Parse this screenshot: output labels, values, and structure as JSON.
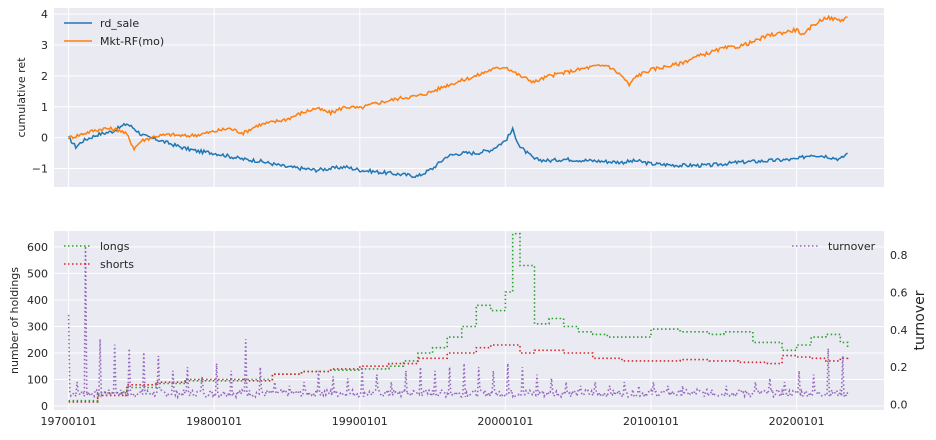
{
  "chart_data": [
    {
      "type": "line",
      "ylabel": "cumulative ret",
      "ylim": [
        -1.6,
        4.2
      ],
      "yticks": [
        -1,
        0,
        1,
        2,
        3,
        4
      ],
      "xlim": [
        1969.0,
        2026.0
      ],
      "legend_position": "top-left",
      "grid": true,
      "series": [
        {
          "name": "rd_sale",
          "color": "#1f77b4",
          "x": [
            1970.0,
            1970.5,
            1971.0,
            1972.0,
            1973.0,
            1974.0,
            1974.5,
            1975.0,
            1975.5,
            1976.0,
            1977.0,
            1978.0,
            1979.0,
            1980.0,
            1981.0,
            1982.0,
            1983.0,
            1984.0,
            1985.0,
            1986.0,
            1987.0,
            1988.0,
            1989.0,
            1990.0,
            1991.0,
            1992.0,
            1993.0,
            1994.0,
            1995.0,
            1996.0,
            1997.0,
            1998.0,
            1999.0,
            2000.0,
            2000.5,
            2001.0,
            2002.0,
            2003.0,
            2004.0,
            2006.0,
            2008.0,
            2009.0,
            2010.0,
            2012.0,
            2014.0,
            2016.0,
            2018.0,
            2020.0,
            2021.0,
            2022.0,
            2023.0,
            2023.5
          ],
          "y": [
            0.0,
            -0.3,
            -0.1,
            0.1,
            0.2,
            0.45,
            0.3,
            0.1,
            0.0,
            -0.05,
            -0.2,
            -0.35,
            -0.45,
            -0.5,
            -0.6,
            -0.7,
            -0.75,
            -0.85,
            -0.95,
            -1.0,
            -1.05,
            -1.0,
            -0.95,
            -1.05,
            -1.1,
            -1.15,
            -1.2,
            -1.25,
            -1.0,
            -0.6,
            -0.5,
            -0.5,
            -0.4,
            -0.1,
            0.25,
            -0.3,
            -0.7,
            -0.75,
            -0.7,
            -0.75,
            -0.8,
            -0.75,
            -0.85,
            -0.9,
            -0.9,
            -0.8,
            -0.75,
            -0.7,
            -0.55,
            -0.6,
            -0.7,
            -0.5
          ]
        },
        {
          "name": "Mkt-RF(mo)",
          "color": "#ff7f0e",
          "x": [
            1970.0,
            1970.5,
            1971.5,
            1972.5,
            1973.5,
            1974.0,
            1974.5,
            1975.0,
            1976.0,
            1977.0,
            1978.0,
            1979.0,
            1980.0,
            1981.0,
            1982.0,
            1983.0,
            1984.0,
            1985.0,
            1986.0,
            1987.0,
            1988.0,
            1989.0,
            1990.0,
            1991.0,
            1992.0,
            1993.0,
            1994.0,
            1995.0,
            1996.0,
            1997.0,
            1998.0,
            1999.0,
            2000.0,
            2001.0,
            2002.0,
            2003.0,
            2004.0,
            2005.0,
            2006.0,
            2007.0,
            2008.0,
            2008.5,
            2009.0,
            2010.0,
            2011.0,
            2012.0,
            2013.0,
            2014.0,
            2015.0,
            2016.0,
            2017.0,
            2018.0,
            2019.0,
            2020.0,
            2020.5,
            2021.0,
            2022.0,
            2023.0,
            2023.5
          ],
          "y": [
            0.0,
            0.05,
            0.2,
            0.3,
            0.25,
            0.1,
            -0.35,
            -0.1,
            0.05,
            0.1,
            0.05,
            0.1,
            0.2,
            0.3,
            0.15,
            0.4,
            0.5,
            0.6,
            0.8,
            0.95,
            0.8,
            1.0,
            0.95,
            1.1,
            1.2,
            1.3,
            1.35,
            1.5,
            1.7,
            1.85,
            2.0,
            2.2,
            2.3,
            2.0,
            1.8,
            2.0,
            2.1,
            2.2,
            2.3,
            2.35,
            2.0,
            1.7,
            2.0,
            2.2,
            2.3,
            2.4,
            2.6,
            2.75,
            2.9,
            2.95,
            3.1,
            3.3,
            3.4,
            3.5,
            3.3,
            3.6,
            3.9,
            3.8,
            3.9
          ]
        }
      ]
    },
    {
      "type": "line",
      "ylabel": "number of holdings",
      "ylim": [
        -15,
        660
      ],
      "yticks": [
        0,
        100,
        200,
        300,
        400,
        500,
        600
      ],
      "y2label": "turnover",
      "y2lim": [
        -0.03,
        0.93
      ],
      "y2ticks": [
        0.0,
        0.2,
        0.4,
        0.6,
        0.8
      ],
      "xlim": [
        1969.0,
        2026.0
      ],
      "xticks": [
        1970.0,
        1980.0,
        1990.0,
        2000.0,
        2010.0,
        2020.0
      ],
      "xticklabels": [
        "19700101",
        "19800101",
        "19900101",
        "20000101",
        "20100101",
        "20200101"
      ],
      "legend_position": "top-left",
      "legend2_position": "top-right",
      "grid": true,
      "series": [
        {
          "name": "longs",
          "axis": "left",
          "color": "#2ca02c",
          "step": true,
          "x": [
            1970,
            1972,
            1974,
            1976,
            1978,
            1980,
            1982,
            1984,
            1986,
            1988,
            1990,
            1992,
            1993,
            1994,
            1995,
            1996,
            1997,
            1998,
            1999,
            2000,
            2000.5,
            2001,
            2002,
            2003,
            2004,
            2005,
            2006,
            2007,
            2008,
            2010,
            2012,
            2014,
            2015,
            2017,
            2019,
            2020,
            2021,
            2022,
            2023,
            2023.5
          ],
          "y": [
            20,
            50,
            70,
            85,
            95,
            95,
            100,
            120,
            130,
            135,
            140,
            150,
            170,
            200,
            220,
            260,
            300,
            380,
            360,
            430,
            650,
            530,
            310,
            330,
            300,
            280,
            270,
            260,
            260,
            290,
            280,
            270,
            280,
            240,
            210,
            230,
            260,
            270,
            240,
            215
          ]
        },
        {
          "name": "shorts",
          "axis": "left",
          "color": "#d62728",
          "step": true,
          "x": [
            1970,
            1972,
            1974,
            1976,
            1978,
            1980,
            1982,
            1984,
            1986,
            1988,
            1990,
            1992,
            1994,
            1996,
            1998,
            1999,
            2000,
            2001,
            2002,
            2004,
            2006,
            2008,
            2010,
            2012,
            2014,
            2016,
            2018,
            2019,
            2020,
            2021,
            2022,
            2023,
            2023.5
          ],
          "y": [
            15,
            40,
            80,
            90,
            100,
            100,
            95,
            120,
            130,
            140,
            150,
            160,
            180,
            200,
            220,
            230,
            230,
            200,
            210,
            200,
            180,
            170,
            170,
            175,
            170,
            165,
            160,
            190,
            185,
            180,
            170,
            180,
            185
          ]
        },
        {
          "name": "turnover",
          "axis": "right",
          "color": "#9467bd",
          "dotted": true,
          "baseline": 0.04,
          "spikes": [
            [
              1970.0,
              0.48
            ],
            [
              1970.6,
              0.12
            ],
            [
              1971.2,
              0.85
            ],
            [
              1972.2,
              0.35
            ],
            [
              1973.2,
              0.32
            ],
            [
              1974.2,
              0.3
            ],
            [
              1975.2,
              0.28
            ],
            [
              1976.2,
              0.26
            ],
            [
              1977.2,
              0.18
            ],
            [
              1978.2,
              0.2
            ],
            [
              1979.2,
              0.15
            ],
            [
              1980.2,
              0.22
            ],
            [
              1981.2,
              0.18
            ],
            [
              1982.2,
              0.35
            ],
            [
              1983.2,
              0.2
            ],
            [
              1984.2,
              0.12
            ],
            [
              1985.2,
              0.1
            ],
            [
              1986.2,
              0.12
            ],
            [
              1987.2,
              0.18
            ],
            [
              1988.2,
              0.15
            ],
            [
              1989.2,
              0.14
            ],
            [
              1990.2,
              0.2
            ],
            [
              1991.2,
              0.16
            ],
            [
              1992.2,
              0.12
            ],
            [
              1993.2,
              0.18
            ],
            [
              1994.2,
              0.2
            ],
            [
              1995.2,
              0.18
            ],
            [
              1996.2,
              0.2
            ],
            [
              1997.2,
              0.22
            ],
            [
              1998.2,
              0.2
            ],
            [
              1999.2,
              0.18
            ],
            [
              2000.2,
              0.22
            ],
            [
              2001.2,
              0.2
            ],
            [
              2002.2,
              0.16
            ],
            [
              2003.2,
              0.14
            ],
            [
              2004.2,
              0.12
            ],
            [
              2005.2,
              0.1
            ],
            [
              2006.2,
              0.12
            ],
            [
              2007.2,
              0.1
            ],
            [
              2008.2,
              0.12
            ],
            [
              2009.2,
              0.1
            ],
            [
              2010.2,
              0.12
            ],
            [
              2011.2,
              0.1
            ],
            [
              2012.2,
              0.1
            ],
            [
              2013.2,
              0.08
            ],
            [
              2014.2,
              0.08
            ],
            [
              2015.2,
              0.1
            ],
            [
              2016.2,
              0.08
            ],
            [
              2017.2,
              0.12
            ],
            [
              2018.2,
              0.14
            ],
            [
              2019.2,
              0.12
            ],
            [
              2020.2,
              0.18
            ],
            [
              2021.2,
              0.16
            ],
            [
              2022.2,
              0.3
            ],
            [
              2023.2,
              0.26
            ]
          ]
        }
      ]
    }
  ]
}
